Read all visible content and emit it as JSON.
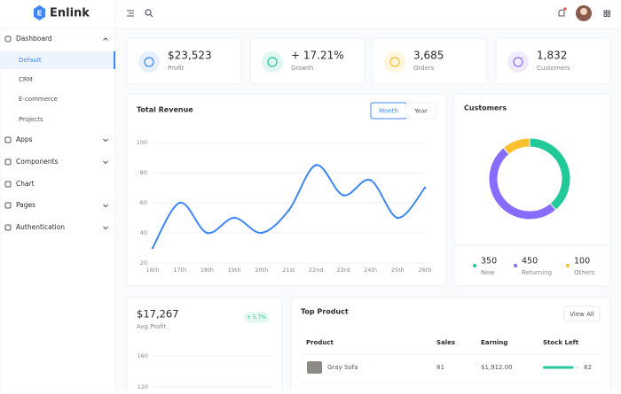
{
  "brand": {
    "logo": "E",
    "name": "Enlink"
  },
  "sidebar": {
    "dashboard": "Dashboard",
    "subitems": [
      "Default",
      "CRM",
      "E-commerce",
      "Projects"
    ],
    "items": [
      "Apps",
      "Components",
      "Chart",
      "Pages",
      "Authentication"
    ]
  },
  "stats": [
    {
      "value": "$23,523",
      "label": "Profit"
    },
    {
      "value": "+ 17.21%",
      "label": "Growth"
    },
    {
      "value": "3,685",
      "label": "Orders"
    },
    {
      "value": "1,832",
      "label": "Customers"
    }
  ],
  "revenue": {
    "title": "Total Revenue",
    "tabs": [
      "Month",
      "Year"
    ],
    "chart": {
      "type": "line",
      "categories": [
        "16th",
        "17th",
        "18th",
        "19th",
        "20th",
        "21st",
        "22nd",
        "23rd",
        "24th",
        "25th",
        "26th"
      ],
      "values": [
        30,
        60,
        40,
        50,
        40,
        55,
        85,
        65,
        75,
        50,
        70
      ],
      "color": "#3f87f5",
      "ylim": [
        20,
        100
      ],
      "yticks": [
        20,
        40,
        60,
        80,
        100
      ],
      "grid": true
    }
  },
  "customers": {
    "title": "Customers",
    "chart": {
      "type": "donut",
      "categories": [
        "New",
        "Returning",
        "Others"
      ],
      "values": [
        350,
        450,
        100
      ],
      "colors": [
        "#20c997",
        "#886cff",
        "#fbc02d"
      ]
    }
  },
  "avg_profit": {
    "value": "$17,267",
    "label": "Avg.Profit",
    "change": "+ 5.7%",
    "chart": {
      "ylim": [
        120,
        160
      ],
      "yticks": [
        120,
        160
      ],
      "grid": true
    }
  },
  "top_product": {
    "title": "Top Product",
    "action": "View All",
    "columns": [
      "Product",
      "Sales",
      "Earning",
      "Stock Left"
    ],
    "rows": [
      [
        "Gray Sofa",
        81,
        "$1,912.00",
        82
      ]
    ],
    "bar_color": "#20c997"
  }
}
